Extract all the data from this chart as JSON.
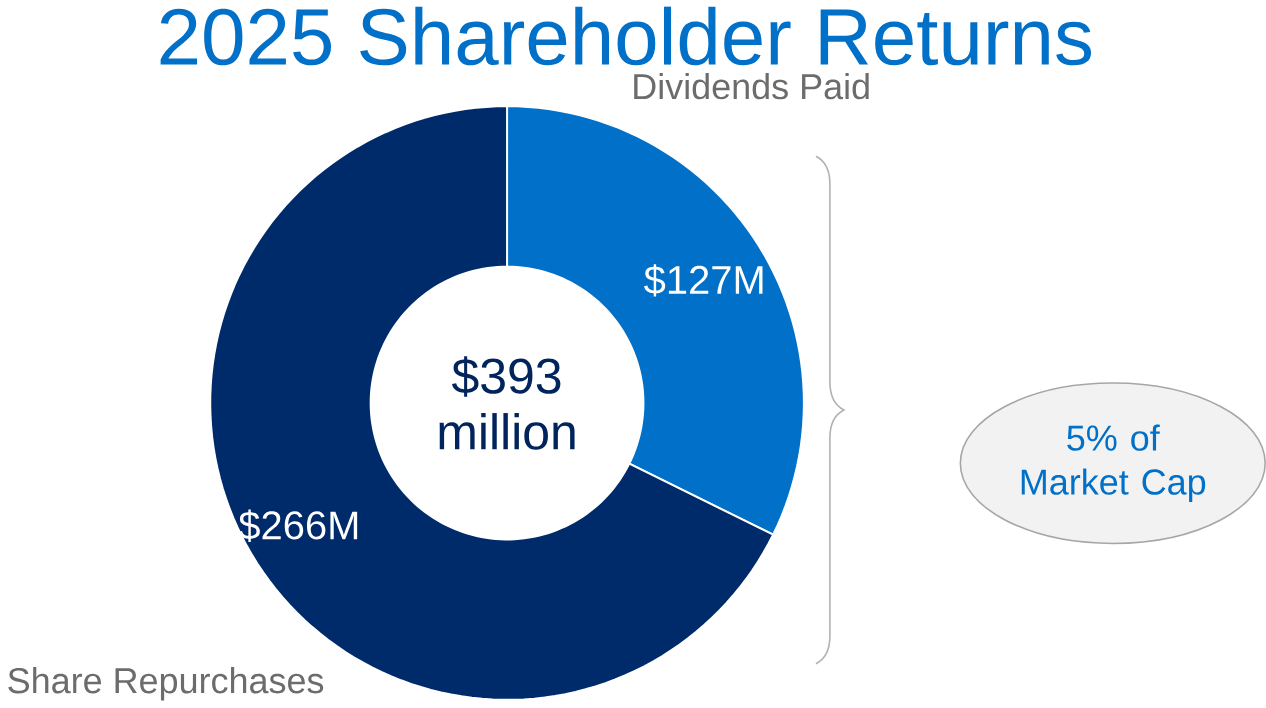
{
  "chart_data": {
    "type": "donut",
    "title": "2025 Shareholder Returns",
    "categories": [
      "Dividends Paid",
      "Share Repurchases"
    ],
    "values": [
      127,
      266
    ],
    "colors": [
      "#0070c8",
      "#002b6b"
    ],
    "value_labels": [
      "$127M",
      "$266M"
    ],
    "annotations": [
      "$393 million",
      "5% of Market Cap"
    ]
  }
}
